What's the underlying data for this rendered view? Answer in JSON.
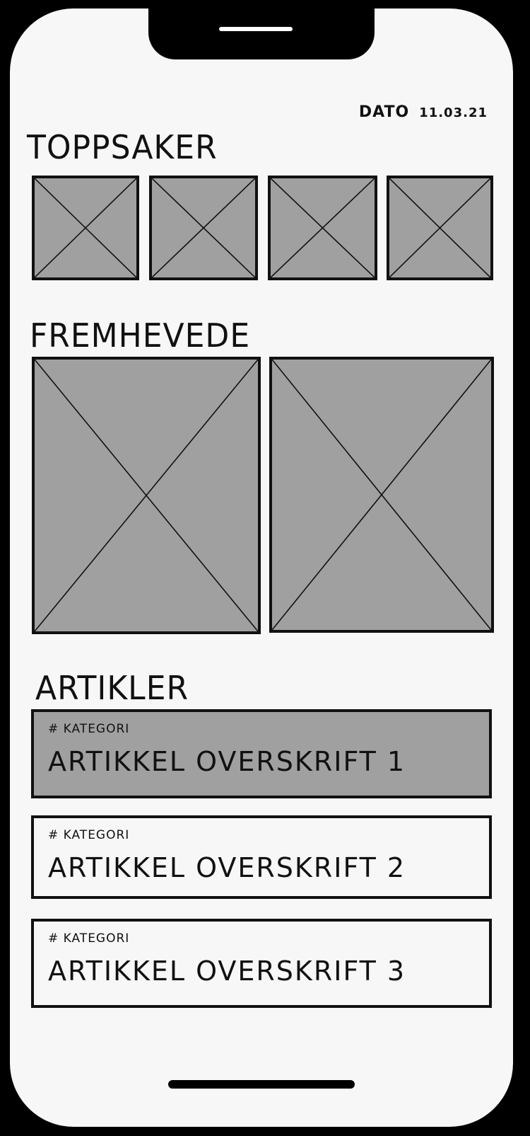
{
  "header": {
    "date_label": "DATO",
    "date_value": "11.03.21"
  },
  "sections": {
    "top": {
      "title": "TOPPSAKER"
    },
    "featured": {
      "title": "FREMHEVEDE"
    },
    "articles": {
      "title": "ARTIKLER"
    }
  },
  "articles": [
    {
      "category": "# KATEGORI",
      "headline": "ARTIKKEL OVERSKRIFT 1"
    },
    {
      "category": "# KATEGORI",
      "headline": "ARTIKKEL OVERSKRIFT 2"
    },
    {
      "category": "# KATEGORI",
      "headline": "ARTIKKEL OVERSKRIFT 3"
    }
  ],
  "colors": {
    "placeholder_fill": "#a0a0a0",
    "stroke": "#111111",
    "background": "#f7f7f7",
    "frame": "#000000"
  }
}
